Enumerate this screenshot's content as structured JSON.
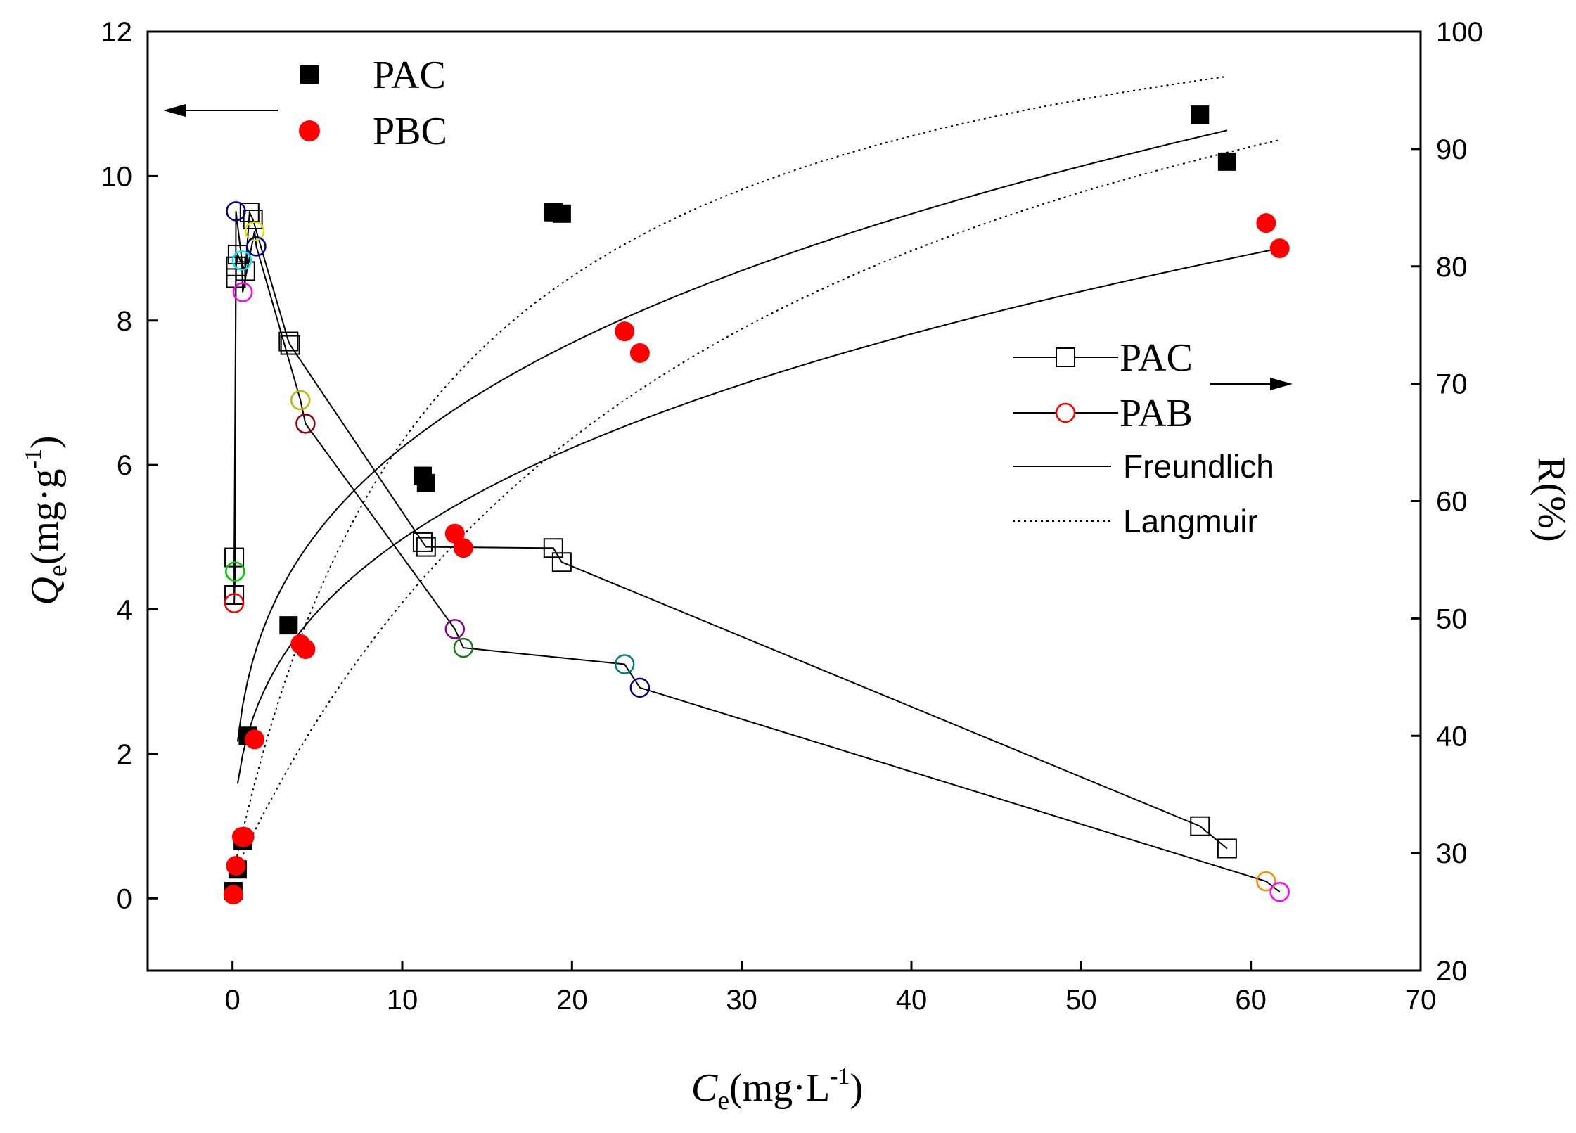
{
  "chart_data": {
    "type": "scatter",
    "title": "",
    "xlabel": {
      "sym": "C",
      "sub": "e",
      "unit_pre": "(mg·L",
      "sup": "-1",
      "unit_post": ")"
    },
    "ylabel": {
      "sym": "Q",
      "sub": "e",
      "unit_pre": "(mg·g",
      "sup": "-1",
      "unit_post": ")"
    },
    "y2label": "R(%)",
    "xlim": [
      -5,
      70
    ],
    "ylim": [
      -1,
      12
    ],
    "y2lim": [
      20,
      100
    ],
    "xticks": [
      0,
      10,
      20,
      30,
      40,
      50,
      60,
      70
    ],
    "yticks": [
      0,
      2,
      4,
      6,
      8,
      10,
      12
    ],
    "y2ticks": [
      20,
      30,
      40,
      50,
      60,
      70,
      80,
      90,
      100
    ],
    "grid": false,
    "legend_left": {
      "placement": "top-left",
      "entries": [
        {
          "label": "PAC",
          "marker": "filled-square",
          "color": "#000000"
        },
        {
          "label": "PBC",
          "marker": "filled-circle",
          "color": "#ff0000"
        }
      ]
    },
    "legend_right": {
      "placement": "center-right",
      "entries": [
        {
          "label": "PAC",
          "marker": "open-square-line",
          "color": "#000000"
        },
        {
          "label": "PAB",
          "marker": "open-circle-line",
          "color": "#ff0000"
        },
        {
          "label": "Freundlich",
          "marker": "solid-line",
          "color": "#000000"
        },
        {
          "label": "Langmuir",
          "marker": "dotted-line",
          "color": "#000000"
        }
      ]
    },
    "series": [
      {
        "name": "PAC",
        "axis": "left",
        "marker": "filled-square",
        "color": "#000000",
        "x": [
          0.05,
          0.3,
          0.6,
          0.9,
          3.3,
          11.2,
          11.4,
          18.9,
          19.4,
          57.0,
          58.6
        ],
        "y": [
          0.1,
          0.4,
          0.8,
          2.25,
          3.78,
          5.85,
          5.75,
          9.5,
          9.48,
          10.85,
          10.2
        ]
      },
      {
        "name": "PBC",
        "axis": "left",
        "marker": "filled-circle",
        "color": "#ff0000",
        "x": [
          0.05,
          0.2,
          0.55,
          0.7,
          1.3,
          4.0,
          4.3,
          13.1,
          13.6,
          23.1,
          24.0,
          60.9,
          61.7
        ],
        "y": [
          0.05,
          0.45,
          0.85,
          0.85,
          2.2,
          3.52,
          3.45,
          5.05,
          4.85,
          7.85,
          7.55,
          9.35,
          9.0
        ]
      },
      {
        "name": "PAC",
        "axis": "right",
        "marker": "open-square-line",
        "color": "#000000",
        "x": [
          0.1,
          0.1,
          0.2,
          0.2,
          0.3,
          0.75,
          1.0,
          1.2,
          3.3,
          3.4,
          11.2,
          11.4,
          18.9,
          19.4,
          57.0,
          58.6
        ],
        "y": [
          52.0,
          55.2,
          79.0,
          80.0,
          81.0,
          79.6,
          84.6,
          84.0,
          73.6,
          73.3,
          56.5,
          56.1,
          56.0,
          54.8,
          32.3,
          30.4
        ]
      },
      {
        "name": "PAB",
        "axis": "right",
        "marker": "open-circle-line",
        "color": "#ff0000",
        "x": [
          0.1,
          0.15,
          0.2,
          0.55,
          0.6,
          1.3,
          1.4,
          4.0,
          4.3,
          13.1,
          13.6,
          23.1,
          24.0,
          60.9,
          61.7
        ],
        "y": [
          51.3,
          54.0,
          84.7,
          80.5,
          77.8,
          83.0,
          81.7,
          68.6,
          66.6,
          49.1,
          47.5,
          46.1,
          44.1,
          27.6,
          26.7
        ]
      }
    ],
    "fits": [
      {
        "name": "Freundlich",
        "series": "PAC",
        "style": "solid",
        "x": [
          0.3,
          58.6
        ],
        "K": 3.12,
        "n": 3.32
      },
      {
        "name": "Freundlich",
        "series": "PBC",
        "style": "solid",
        "x": [
          0.3,
          61.7
        ],
        "K": 2.35,
        "n": 3.07
      },
      {
        "name": "Langmuir",
        "series": "PAC",
        "style": "dotted",
        "x": [
          0.05,
          58.6
        ],
        "Qm": 13.39,
        "KL": 0.0818,
        "Q0": 0.3
      },
      {
        "name": "Langmuir",
        "series": "PBC",
        "style": "dotted",
        "x": [
          0.05,
          61.7
        ],
        "Qm": 15.15,
        "KL": 0.0334,
        "Q0": 0.3
      }
    ],
    "r_point_colors": [
      "#ff0000",
      "#00cc00",
      "#00008b",
      "#00e5ff",
      "#ff00ff",
      "#e0e000",
      "#00008b",
      "#b8b800",
      "#8b0000",
      "#8b008b",
      "#1a7a1a",
      "#007a7a",
      "#00008b",
      "#ff8c00",
      "#ff00ff",
      "#9400d3"
    ]
  }
}
